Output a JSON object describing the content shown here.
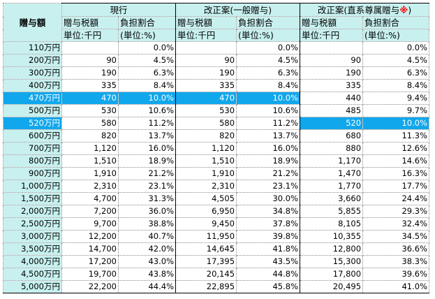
{
  "corner_label": "贈与額",
  "groups": [
    {
      "title": "現行"
    },
    {
      "title": "改正案(一般贈与)"
    },
    {
      "title": "改正案(直系尊属贈与",
      "mark": "※",
      "suffix": ")"
    }
  ],
  "sub_headers": {
    "tax_line1": "贈与税額",
    "tax_line2": "単位:千円",
    "rate_line1": "負担割合",
    "rate_line2": "(単位:%)"
  },
  "rows": [
    {
      "amount": "110万円",
      "cur_tax": "",
      "cur_rate": "0.0%",
      "gen_tax": "",
      "gen_rate": "0.0%",
      "dir_tax": "",
      "dir_rate": "0.0%"
    },
    {
      "amount": "200万円",
      "cur_tax": "90",
      "cur_rate": "4.5%",
      "gen_tax": "90",
      "gen_rate": "4.5%",
      "dir_tax": "90",
      "dir_rate": "4.5%"
    },
    {
      "amount": "300万円",
      "cur_tax": "190",
      "cur_rate": "6.3%",
      "gen_tax": "190",
      "gen_rate": "6.3%",
      "dir_tax": "190",
      "dir_rate": "6.3%"
    },
    {
      "amount": "400万円",
      "cur_tax": "335",
      "cur_rate": "8.4%",
      "gen_tax": "335",
      "gen_rate": "8.4%",
      "dir_tax": "335",
      "dir_rate": "8.4%"
    },
    {
      "amount": "470万円",
      "cur_tax": "470",
      "cur_rate": "10.0%",
      "gen_tax": "470",
      "gen_rate": "10.0%",
      "dir_tax": "440",
      "dir_rate": "9.4%"
    },
    {
      "amount": "500万円",
      "cur_tax": "530",
      "cur_rate": "10.6%",
      "gen_tax": "530",
      "gen_rate": "10.6%",
      "dir_tax": "485",
      "dir_rate": "9.7%"
    },
    {
      "amount": "520万円",
      "cur_tax": "580",
      "cur_rate": "11.2%",
      "gen_tax": "580",
      "gen_rate": "11.2%",
      "dir_tax": "520",
      "dir_rate": "10.0%"
    },
    {
      "amount": "600万円",
      "cur_tax": "820",
      "cur_rate": "13.7%",
      "gen_tax": "820",
      "gen_rate": "13.7%",
      "dir_tax": "680",
      "dir_rate": "11.3%"
    },
    {
      "amount": "700万円",
      "cur_tax": "1,120",
      "cur_rate": "16.0%",
      "gen_tax": "1,120",
      "gen_rate": "16.0%",
      "dir_tax": "880",
      "dir_rate": "12.6%"
    },
    {
      "amount": "800万円",
      "cur_tax": "1,510",
      "cur_rate": "18.9%",
      "gen_tax": "1,510",
      "gen_rate": "18.9%",
      "dir_tax": "1,170",
      "dir_rate": "14.6%"
    },
    {
      "amount": "900万円",
      "cur_tax": "1,910",
      "cur_rate": "21.2%",
      "gen_tax": "1,910",
      "gen_rate": "21.2%",
      "dir_tax": "1,470",
      "dir_rate": "16.3%"
    },
    {
      "amount": "1,000万円",
      "cur_tax": "2,310",
      "cur_rate": "23.1%",
      "gen_tax": "2,310",
      "gen_rate": "23.1%",
      "dir_tax": "1,770",
      "dir_rate": "17.7%"
    },
    {
      "amount": "1,500万円",
      "cur_tax": "4,700",
      "cur_rate": "31.3%",
      "gen_tax": "4,505",
      "gen_rate": "30.0%",
      "dir_tax": "3,660",
      "dir_rate": "24.4%"
    },
    {
      "amount": "2,000万円",
      "cur_tax": "7,200",
      "cur_rate": "36.0%",
      "gen_tax": "6,950",
      "gen_rate": "34.8%",
      "dir_tax": "5,855",
      "dir_rate": "29.3%"
    },
    {
      "amount": "2,500万円",
      "cur_tax": "9,700",
      "cur_rate": "38.8%",
      "gen_tax": "9,450",
      "gen_rate": "37.8%",
      "dir_tax": "8,105",
      "dir_rate": "32.4%"
    },
    {
      "amount": "3,000万円",
      "cur_tax": "12,200",
      "cur_rate": "40.7%",
      "gen_tax": "11,950",
      "gen_rate": "39.8%",
      "dir_tax": "10,355",
      "dir_rate": "34.5%"
    },
    {
      "amount": "3,500万円",
      "cur_tax": "14,700",
      "cur_rate": "42.0%",
      "gen_tax": "14,645",
      "gen_rate": "41.8%",
      "dir_tax": "12,800",
      "dir_rate": "36.6%"
    },
    {
      "amount": "4,000万円",
      "cur_tax": "17,200",
      "cur_rate": "43.0%",
      "gen_tax": "17,395",
      "gen_rate": "43.5%",
      "dir_tax": "15,300",
      "dir_rate": "38.3%"
    },
    {
      "amount": "4,500万円",
      "cur_tax": "19,700",
      "cur_rate": "43.8%",
      "gen_tax": "20,145",
      "gen_rate": "44.8%",
      "dir_tax": "17,800",
      "dir_rate": "39.6%"
    },
    {
      "amount": "5,000万円",
      "cur_tax": "22,200",
      "cur_rate": "44.4%",
      "gen_tax": "22,895",
      "gen_rate": "45.8%",
      "dir_tax": "20,495",
      "dir_rate": "41.0%"
    }
  ],
  "highlights": {
    "cells": [
      "4.amount",
      "4.cur_tax",
      "4.cur_rate",
      "4.gen_tax",
      "4.gen_rate",
      "6.amount",
      "6.dir_tax",
      "6.dir_rate"
    ],
    "color": "#11a7ec",
    "text_color": "#ffffff"
  },
  "colors": {
    "header_bg": "#c7f0ee",
    "mark": "#ff0000"
  }
}
